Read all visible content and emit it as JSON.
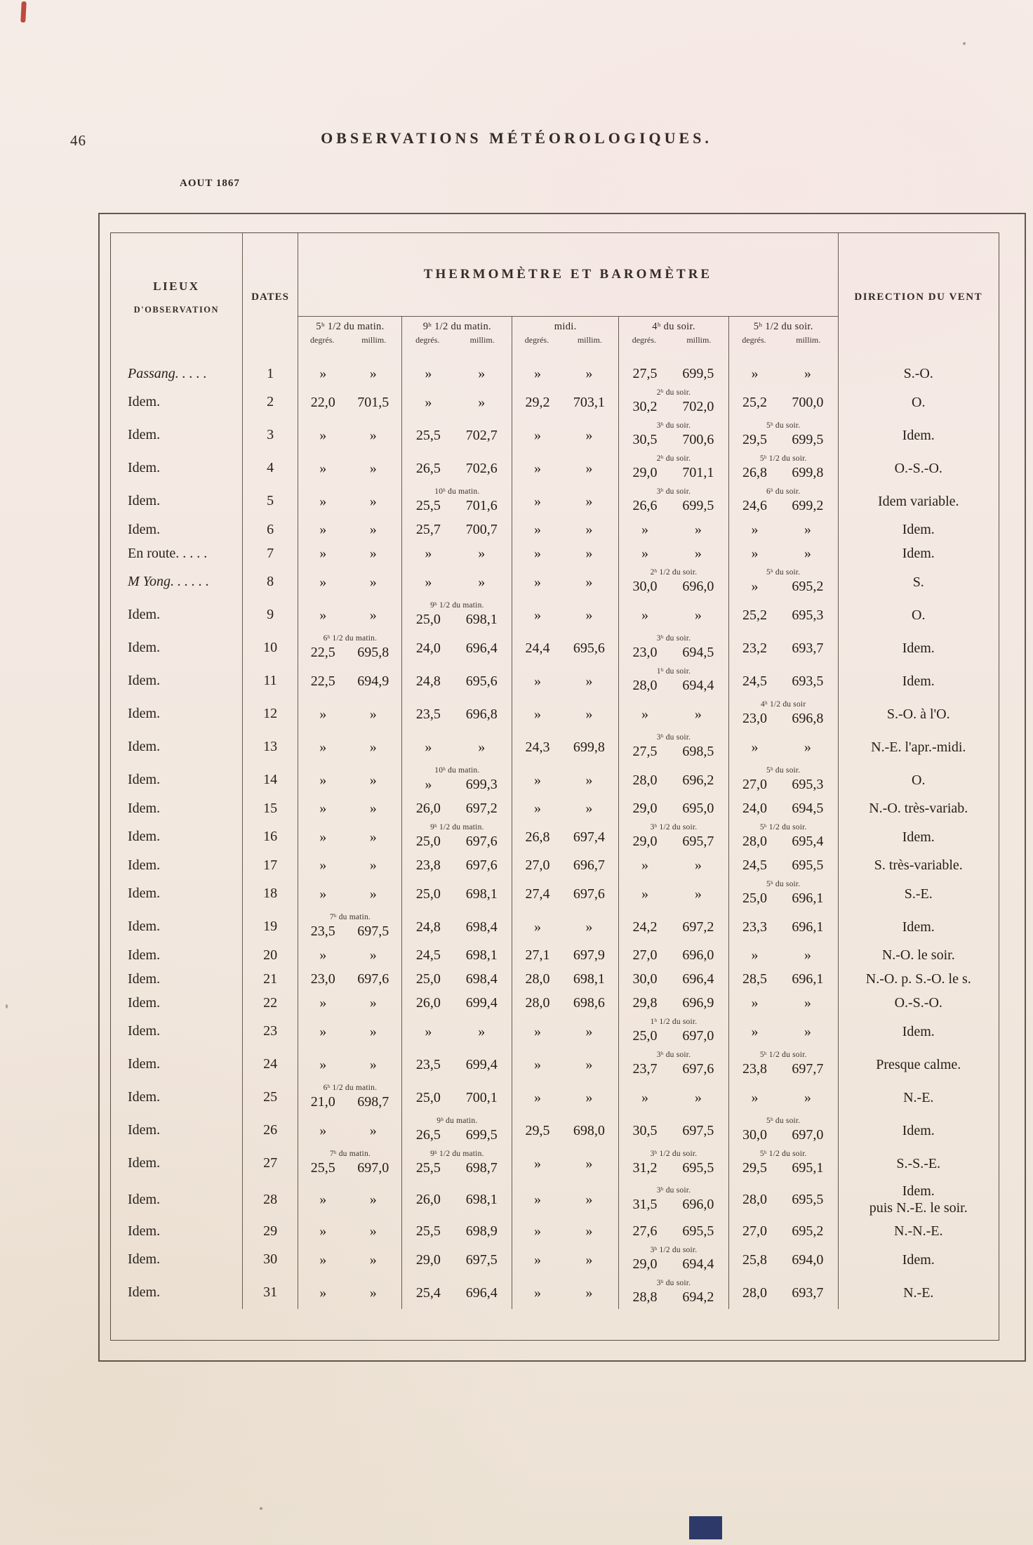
{
  "page": {
    "number": "46",
    "title": "OBSERVATIONS MÉTÉOROLOGIQUES.",
    "month_label": "AOUT 1867"
  },
  "marks": {
    "red": "#b8372c",
    "navy": "#232f63"
  },
  "table": {
    "headers": {
      "lieux_line1": "LIEUX",
      "lieux_line2": "D'OBSERVATION",
      "dates": "DATES",
      "thermo": "THERMOMÈTRE ET BAROMÈTRE",
      "vent": "DIRECTION DU VENT"
    },
    "time_columns": [
      {
        "time": "5ʰ 1/2 du matin.",
        "deg_label": "degrés.",
        "mm_label": "millim."
      },
      {
        "time": "9ʰ 1/2 du matin.",
        "deg_label": "degrés.",
        "mm_label": "millim."
      },
      {
        "time": "midi.",
        "deg_label": "degrés.",
        "mm_label": "millim."
      },
      {
        "time": "4ʰ du soir.",
        "deg_label": "degrés.",
        "mm_label": "millim."
      },
      {
        "time": "5ʰ 1/2 du soir.",
        "deg_label": "degrés.",
        "mm_label": "millim."
      }
    ],
    "rows": [
      {
        "lieu": "Passang. . . . .",
        "italic": true,
        "date": "1",
        "obs": [
          {
            "deg": "»",
            "mm": "»"
          },
          {
            "deg": "»",
            "mm": "»"
          },
          {
            "deg": "»",
            "mm": "»"
          },
          {
            "deg": "27,5",
            "mm": "699,5"
          },
          {
            "deg": "»",
            "mm": "»"
          }
        ],
        "vent": "S.-O."
      },
      {
        "lieu": "Idem.",
        "date": "2",
        "obs": [
          {
            "deg": "22,0",
            "mm": "701,5"
          },
          {
            "deg": "»",
            "mm": "»"
          },
          {
            "deg": "29,2",
            "mm": "703,1"
          },
          {
            "note": "2ʰ du soir.",
            "deg": "30,2",
            "mm": "702,0"
          },
          {
            "deg": "25,2",
            "mm": "700,0"
          }
        ],
        "vent": "O."
      },
      {
        "lieu": "Idem.",
        "date": "3",
        "obs": [
          {
            "deg": "»",
            "mm": "»"
          },
          {
            "deg": "25,5",
            "mm": "702,7"
          },
          {
            "deg": "»",
            "mm": "»"
          },
          {
            "note": "3ʰ du soir.",
            "deg": "30,5",
            "mm": "700,6"
          },
          {
            "note": "5ʰ du soir.",
            "deg": "29,5",
            "mm": "699,5"
          }
        ],
        "vent": "Idem."
      },
      {
        "lieu": "Idem.",
        "date": "4",
        "obs": [
          {
            "deg": "»",
            "mm": "»"
          },
          {
            "deg": "26,5",
            "mm": "702,6"
          },
          {
            "deg": "»",
            "mm": "»"
          },
          {
            "note": "2ʰ du soir.",
            "deg": "29,0",
            "mm": "701,1"
          },
          {
            "note": "5ʰ 1/2 du soir.",
            "deg": "26,8",
            "mm": "699,8"
          }
        ],
        "vent": "O.-S.-O."
      },
      {
        "lieu": "Idem.",
        "date": "5",
        "obs": [
          {
            "deg": "»",
            "mm": "»"
          },
          {
            "note": "10ʰ du matin.",
            "deg": "25,5",
            "mm": "701,6"
          },
          {
            "deg": "»",
            "mm": "»"
          },
          {
            "note": "3ʰ du soir.",
            "deg": "26,6",
            "mm": "699,5"
          },
          {
            "note": "6ʰ du soir.",
            "deg": "24,6",
            "mm": "699,2"
          }
        ],
        "vent": "Idem variable."
      },
      {
        "lieu": "Idem.",
        "date": "6",
        "obs": [
          {
            "deg": "»",
            "mm": "»"
          },
          {
            "deg": "25,7",
            "mm": "700,7"
          },
          {
            "deg": "»",
            "mm": "»"
          },
          {
            "deg": "»",
            "mm": "»"
          },
          {
            "deg": "»",
            "mm": "»"
          }
        ],
        "vent": "Idem."
      },
      {
        "lieu": "En route. . . . .",
        "date": "7",
        "obs": [
          {
            "deg": "»",
            "mm": "»"
          },
          {
            "deg": "»",
            "mm": "»"
          },
          {
            "deg": "»",
            "mm": "»"
          },
          {
            "deg": "»",
            "mm": "»"
          },
          {
            "deg": "»",
            "mm": "»"
          }
        ],
        "vent": "Idem."
      },
      {
        "lieu": "M Yong. . . . . .",
        "italic": true,
        "date": "8",
        "obs": [
          {
            "deg": "»",
            "mm": "»"
          },
          {
            "deg": "»",
            "mm": "»"
          },
          {
            "deg": "»",
            "mm": "»"
          },
          {
            "note": "2ʰ 1/2 du soir.",
            "deg": "30,0",
            "mm": "696,0"
          },
          {
            "note": "5ʰ du soir.",
            "deg": "»",
            "mm": "695,2"
          }
        ],
        "vent": "S."
      },
      {
        "lieu": "Idem.",
        "date": "9",
        "obs": [
          {
            "deg": "»",
            "mm": "»"
          },
          {
            "note": "9ʰ 1/2 du matin.",
            "deg": "25,0",
            "mm": "698,1"
          },
          {
            "deg": "»",
            "mm": "»"
          },
          {
            "deg": "»",
            "mm": "»"
          },
          {
            "deg": "25,2",
            "mm": "695,3"
          }
        ],
        "vent": "O."
      },
      {
        "lieu": "Idem.",
        "date": "10",
        "obs": [
          {
            "note": "6ʰ 1/2 du matin.",
            "deg": "22,5",
            "mm": "695,8"
          },
          {
            "deg": "24,0",
            "mm": "696,4"
          },
          {
            "deg": "24,4",
            "mm": "695,6"
          },
          {
            "note": "3ʰ du soir.",
            "deg": "23,0",
            "mm": "694,5"
          },
          {
            "deg": "23,2",
            "mm": "693,7"
          }
        ],
        "vent": "Idem."
      },
      {
        "lieu": "Idem.",
        "date": "11",
        "obs": [
          {
            "deg": "22,5",
            "mm": "694,9"
          },
          {
            "deg": "24,8",
            "mm": "695,6"
          },
          {
            "deg": "»",
            "mm": "»"
          },
          {
            "note": "1ʰ du soir.",
            "deg": "28,0",
            "mm": "694,4"
          },
          {
            "deg": "24,5",
            "mm": "693,5"
          }
        ],
        "vent": "Idem."
      },
      {
        "lieu": "Idem.",
        "date": "12",
        "obs": [
          {
            "deg": "»",
            "mm": "»"
          },
          {
            "deg": "23,5",
            "mm": "696,8"
          },
          {
            "deg": "»",
            "mm": "»"
          },
          {
            "deg": "»",
            "mm": "»"
          },
          {
            "note": "4ʰ 1/2 du soir",
            "deg": "23,0",
            "mm": "696,8"
          }
        ],
        "vent": "S.-O. à l'O."
      },
      {
        "lieu": "Idem.",
        "date": "13",
        "obs": [
          {
            "deg": "»",
            "mm": "»"
          },
          {
            "deg": "»",
            "mm": "»"
          },
          {
            "deg": "24,3",
            "mm": "699,8"
          },
          {
            "note": "3ʰ du soir.",
            "deg": "27,5",
            "mm": "698,5"
          },
          {
            "deg": "»",
            "mm": "»"
          }
        ],
        "vent": "N.-E. l'apr.-midi."
      },
      {
        "lieu": "Idem.",
        "date": "14",
        "obs": [
          {
            "deg": "»",
            "mm": "»"
          },
          {
            "note": "10ʰ du matin.",
            "deg": "»",
            "mm": "699,3"
          },
          {
            "deg": "»",
            "mm": "»"
          },
          {
            "deg": "28,0",
            "mm": "696,2"
          },
          {
            "note": "5ʰ du soir.",
            "deg": "27,0",
            "mm": "695,3"
          }
        ],
        "vent": "O."
      },
      {
        "lieu": "Idem.",
        "date": "15",
        "obs": [
          {
            "deg": "»",
            "mm": "»"
          },
          {
            "deg": "26,0",
            "mm": "697,2"
          },
          {
            "deg": "»",
            "mm": "»"
          },
          {
            "deg": "29,0",
            "mm": "695,0"
          },
          {
            "deg": "24,0",
            "mm": "694,5"
          }
        ],
        "vent": "N.-O. très-variab."
      },
      {
        "lieu": "Idem.",
        "date": "16",
        "obs": [
          {
            "deg": "»",
            "mm": "»"
          },
          {
            "note": "9ʰ 1/2 du matin.",
            "deg": "25,0",
            "mm": "697,6"
          },
          {
            "deg": "26,8",
            "mm": "697,4"
          },
          {
            "note": "3ʰ 1/2 du soir.",
            "deg": "29,0",
            "mm": "695,7"
          },
          {
            "note": "5ʰ 1/2 du soir.",
            "deg": "28,0",
            "mm": "695,4"
          }
        ],
        "vent": "Idem."
      },
      {
        "lieu": "Idem.",
        "date": "17",
        "obs": [
          {
            "deg": "»",
            "mm": "»"
          },
          {
            "deg": "23,8",
            "mm": "697,6"
          },
          {
            "deg": "27,0",
            "mm": "696,7"
          },
          {
            "deg": "»",
            "mm": "»"
          },
          {
            "deg": "24,5",
            "mm": "695,5"
          }
        ],
        "vent": "S. très-variable."
      },
      {
        "lieu": "Idem.",
        "date": "18",
        "obs": [
          {
            "deg": "»",
            "mm": "»"
          },
          {
            "deg": "25,0",
            "mm": "698,1"
          },
          {
            "deg": "27,4",
            "mm": "697,6"
          },
          {
            "deg": "»",
            "mm": "»"
          },
          {
            "note": "5ʰ du soir.",
            "deg": "25,0",
            "mm": "696,1"
          }
        ],
        "vent": "S.-E."
      },
      {
        "lieu": "Idem.",
        "date": "19",
        "obs": [
          {
            "note": "7ʰ du matin.",
            "deg": "23,5",
            "mm": "697,5"
          },
          {
            "deg": "24,8",
            "mm": "698,4"
          },
          {
            "deg": "»",
            "mm": "»"
          },
          {
            "deg": "24,2",
            "mm": "697,2"
          },
          {
            "deg": "23,3",
            "mm": "696,1"
          }
        ],
        "vent": "Idem."
      },
      {
        "lieu": "Idem.",
        "date": "20",
        "obs": [
          {
            "deg": "»",
            "mm": "»"
          },
          {
            "deg": "24,5",
            "mm": "698,1"
          },
          {
            "deg": "27,1",
            "mm": "697,9"
          },
          {
            "deg": "27,0",
            "mm": "696,0"
          },
          {
            "deg": "»",
            "mm": "»"
          }
        ],
        "vent": "N.-O. le soir."
      },
      {
        "lieu": "Idem.",
        "date": "21",
        "obs": [
          {
            "deg": "23,0",
            "mm": "697,6"
          },
          {
            "deg": "25,0",
            "mm": "698,4"
          },
          {
            "deg": "28,0",
            "mm": "698,1"
          },
          {
            "deg": "30,0",
            "mm": "696,4"
          },
          {
            "deg": "28,5",
            "mm": "696,1"
          }
        ],
        "vent": "N.-O. p. S.-O. le s."
      },
      {
        "lieu": "Idem.",
        "date": "22",
        "obs": [
          {
            "deg": "»",
            "mm": "»"
          },
          {
            "deg": "26,0",
            "mm": "699,4"
          },
          {
            "deg": "28,0",
            "mm": "698,6"
          },
          {
            "deg": "29,8",
            "mm": "696,9"
          },
          {
            "deg": "»",
            "mm": "»"
          }
        ],
        "vent": "O.-S.-O."
      },
      {
        "lieu": "Idem.",
        "date": "23",
        "obs": [
          {
            "deg": "»",
            "mm": "»"
          },
          {
            "deg": "»",
            "mm": "»"
          },
          {
            "deg": "»",
            "mm": "»"
          },
          {
            "note": "1ʰ 1/2 du soir.",
            "deg": "25,0",
            "mm": "697,0"
          },
          {
            "deg": "»",
            "mm": "»"
          }
        ],
        "vent": "Idem."
      },
      {
        "lieu": "Idem.",
        "date": "24",
        "obs": [
          {
            "deg": "»",
            "mm": "»"
          },
          {
            "deg": "23,5",
            "mm": "699,4"
          },
          {
            "deg": "»",
            "mm": "»"
          },
          {
            "note": "3ʰ du soir.",
            "deg": "23,7",
            "mm": "697,6"
          },
          {
            "note": "5ʰ 1/2 du soir.",
            "deg": "23,8",
            "mm": "697,7"
          }
        ],
        "vent": "Presque calme."
      },
      {
        "lieu": "Idem.",
        "date": "25",
        "obs": [
          {
            "note": "6ʰ 1/2 du matin.",
            "deg": "21,0",
            "mm": "698,7"
          },
          {
            "deg": "25,0",
            "mm": "700,1"
          },
          {
            "deg": "»",
            "mm": "»"
          },
          {
            "deg": "»",
            "mm": "»"
          },
          {
            "deg": "»",
            "mm": "»"
          }
        ],
        "vent": "N.-E."
      },
      {
        "lieu": "Idem.",
        "date": "26",
        "obs": [
          {
            "deg": "»",
            "mm": "»"
          },
          {
            "note": "9ʰ du matin.",
            "deg": "26,5",
            "mm": "699,5"
          },
          {
            "deg": "29,5",
            "mm": "698,0"
          },
          {
            "deg": "30,5",
            "mm": "697,5"
          },
          {
            "note": "5ʰ du soir.",
            "deg": "30,0",
            "mm": "697,0"
          }
        ],
        "vent": "Idem."
      },
      {
        "lieu": "Idem.",
        "date": "27",
        "obs": [
          {
            "note": "7ʰ du matin.",
            "deg": "25,5",
            "mm": "697,0"
          },
          {
            "note": "9ʰ 1/2 du matin.",
            "deg": "25,5",
            "mm": "698,7"
          },
          {
            "deg": "»",
            "mm": "»"
          },
          {
            "note": "3ʰ 1/2 du soir.",
            "deg": "31,2",
            "mm": "695,5"
          },
          {
            "note": "5ʰ 1/2 du soir.",
            "deg": "29,5",
            "mm": "695,1"
          }
        ],
        "vent": "S.-S.-E."
      },
      {
        "lieu": "Idem.",
        "date": "28",
        "obs": [
          {
            "deg": "»",
            "mm": "»"
          },
          {
            "deg": "26,0",
            "mm": "698,1"
          },
          {
            "deg": "»",
            "mm": "»"
          },
          {
            "note": "3ʰ du soir.",
            "deg": "31,5",
            "mm": "696,0"
          },
          {
            "deg": "28,0",
            "mm": "695,5"
          }
        ],
        "vent": "Idem.",
        "vent2": "puis N.-E. le soir."
      },
      {
        "lieu": "Idem.",
        "date": "29",
        "obs": [
          {
            "deg": "»",
            "mm": "»"
          },
          {
            "deg": "25,5",
            "mm": "698,9"
          },
          {
            "deg": "»",
            "mm": "»"
          },
          {
            "deg": "27,6",
            "mm": "695,5"
          },
          {
            "deg": "27,0",
            "mm": "695,2"
          }
        ],
        "vent": "N.-N.-E."
      },
      {
        "lieu": "Idem.",
        "date": "30",
        "obs": [
          {
            "deg": "»",
            "mm": "»"
          },
          {
            "deg": "29,0",
            "mm": "697,5"
          },
          {
            "deg": "»",
            "mm": "»"
          },
          {
            "note": "3ʰ 1/2 du soir.",
            "deg": "29,0",
            "mm": "694,4"
          },
          {
            "deg": "25,8",
            "mm": "694,0"
          }
        ],
        "vent": "Idem."
      },
      {
        "lieu": "Idem.",
        "date": "31",
        "obs": [
          {
            "deg": "»",
            "mm": "»"
          },
          {
            "deg": "25,4",
            "mm": "696,4"
          },
          {
            "deg": "»",
            "mm": "»"
          },
          {
            "note": "3ʰ du soir.",
            "deg": "28,8",
            "mm": "694,2"
          },
          {
            "deg": "28,0",
            "mm": "693,7"
          }
        ],
        "vent": "N.-E."
      }
    ]
  }
}
